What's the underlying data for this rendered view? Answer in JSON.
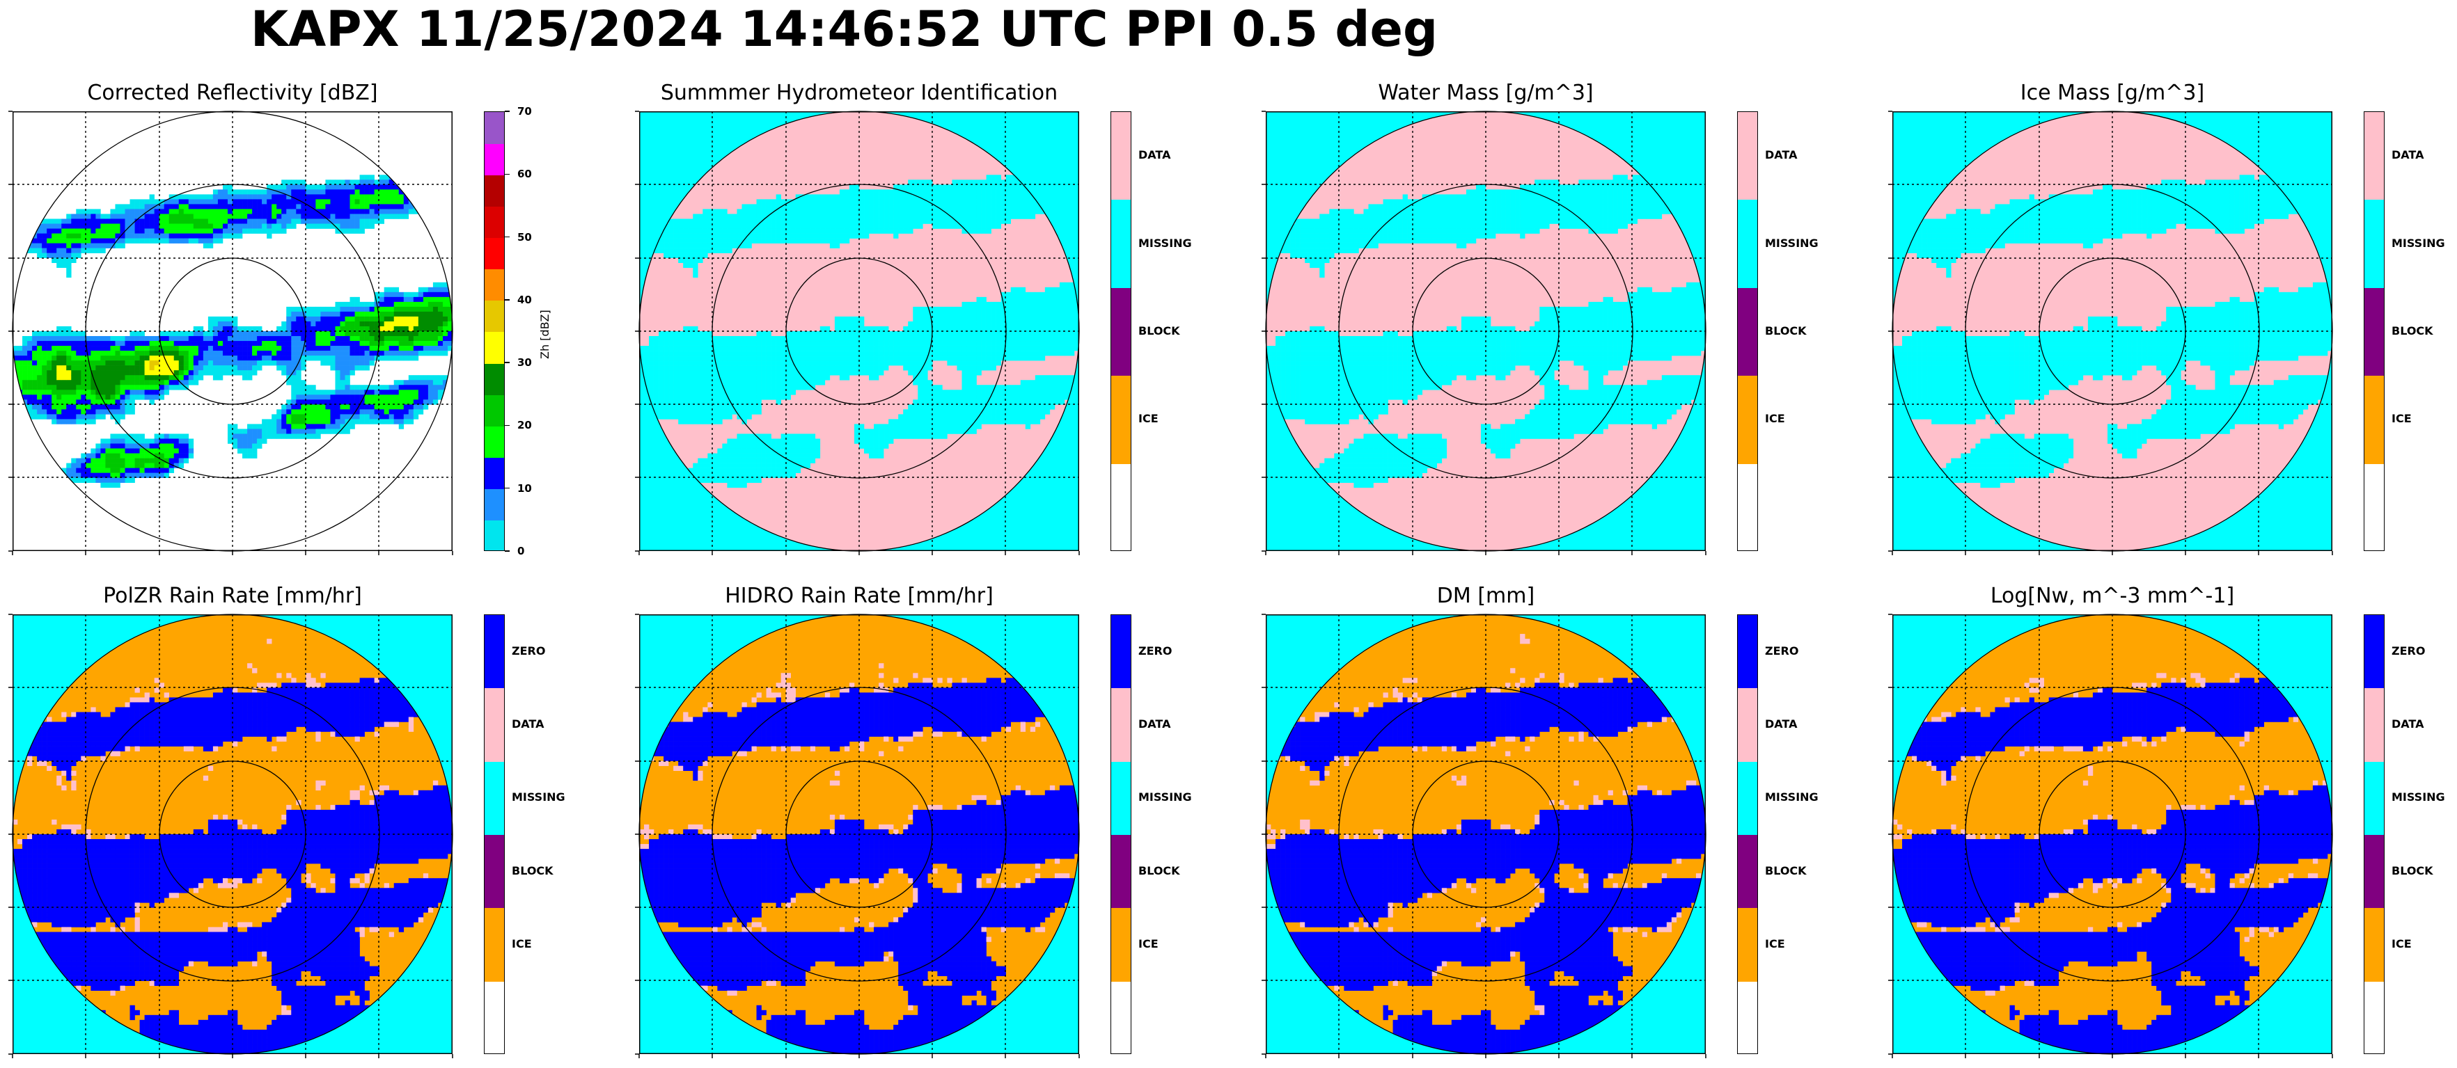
{
  "title": "KAPX 11/25/2024 14:46:52 UTC PPI 0.5 deg",
  "colors": {
    "zero": "#0000ff",
    "data": "#ffc0cb",
    "missing": "#00ffff",
    "block": "#800080",
    "ice": "#ffa500",
    "blank": "#ffffff"
  },
  "chart_data": [
    {
      "type": "heatmap",
      "title": "Corrected Reflectivity [dBZ]",
      "colorbar": {
        "label": "Zh [dBZ]",
        "ticks": [
          "0",
          "10",
          "20",
          "30",
          "40",
          "50",
          "60",
          "70"
        ],
        "range": [
          0,
          70
        ],
        "colors": [
          "#00e5ee",
          "#1e90ff",
          "#0000ff",
          "#00ff00",
          "#00c800",
          "#008c00",
          "#ffff00",
          "#e6c800",
          "#ff8c00",
          "#ff0000",
          "#dc0000",
          "#b40000",
          "#ff00ff",
          "#9955c9"
        ]
      },
      "grid": true
    },
    {
      "type": "heatmap",
      "title": "Summmer Hydrometeor Identification",
      "colorbar": {
        "categories": [
          "DATA",
          "MISSING",
          "BLOCK",
          "ICE"
        ]
      },
      "grid": true
    },
    {
      "type": "heatmap",
      "title": "Water Mass [g/m^3]",
      "colorbar": {
        "categories": [
          "DATA",
          "MISSING",
          "BLOCK",
          "ICE"
        ]
      },
      "grid": true
    },
    {
      "type": "heatmap",
      "title": "Ice Mass [g/m^3]",
      "colorbar": {
        "categories": [
          "DATA",
          "MISSING",
          "BLOCK",
          "ICE"
        ]
      },
      "grid": true
    },
    {
      "type": "heatmap",
      "title": "PolZR Rain Rate [mm/hr]",
      "colorbar": {
        "categories": [
          "ZERO",
          "DATA",
          "MISSING",
          "BLOCK",
          "ICE"
        ]
      },
      "grid": true
    },
    {
      "type": "heatmap",
      "title": "HIDRO Rain Rate [mm/hr]",
      "colorbar": {
        "categories": [
          "ZERO",
          "DATA",
          "MISSING",
          "BLOCK",
          "ICE"
        ]
      },
      "grid": true
    },
    {
      "type": "heatmap",
      "title": "DM [mm]",
      "colorbar": {
        "categories": [
          "ZERO",
          "DATA",
          "MISSING",
          "BLOCK",
          "ICE"
        ]
      },
      "grid": true
    },
    {
      "type": "heatmap",
      "title": "Log[Nw, m^-3 mm^-1]",
      "colorbar": {
        "categories": [
          "ZERO",
          "DATA",
          "MISSING",
          "BLOCK",
          "ICE"
        ]
      },
      "grid": true
    }
  ]
}
